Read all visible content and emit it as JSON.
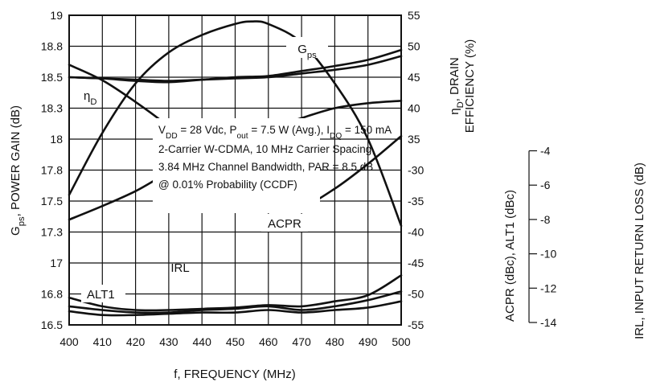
{
  "chart_data": {
    "type": "line",
    "xlabel": "f, FREQUENCY (MHz)",
    "x_ticks": [
      "400",
      "410",
      "420",
      "430",
      "440",
      "450",
      "460",
      "470",
      "480",
      "490",
      "500"
    ],
    "xlim": [
      400,
      500
    ],
    "axes": {
      "gain": {
        "label_main": "G",
        "label_sub": "ps",
        "label_rest": ", POWER GAIN (dB)",
        "ylim": [
          16.5,
          19.0
        ],
        "ticks": [
          "19",
          "18.8",
          "18.5",
          "18.3",
          "18",
          "17.8",
          "17.5",
          "17.3",
          "17",
          "16.8",
          "16.5"
        ]
      },
      "eff": {
        "label_sym": "η",
        "label_sub": "D",
        "label_line1_rest": ", DRAIN",
        "label_line2": "EFFICIENCY (%)",
        "ylim": [
          30,
          55
        ],
        "ticks": [
          "55",
          "50",
          "45",
          "40",
          "35"
        ]
      },
      "acpr": {
        "label": "ACPR (dBc), ALT1 (dBc)",
        "ylim": [
          -55,
          -30
        ],
        "ticks": [
          "-30",
          "-35",
          "-40",
          "-45",
          "-50",
          "-55"
        ]
      },
      "irl": {
        "label": "IRL, INPUT RETURN LOSS (dB)",
        "ylim": [
          -14,
          -4
        ],
        "ticks": [
          "-4",
          "-6",
          "-8",
          "-10",
          "-12",
          "-14"
        ]
      }
    },
    "series": [
      {
        "name": "Gps",
        "label_main": "G",
        "label_sub": "ps",
        "axis": "gain",
        "x": [
          400,
          410,
          420,
          430,
          440,
          450,
          455,
          460,
          470,
          480,
          490,
          500
        ],
        "y": [
          17.55,
          18.05,
          18.45,
          18.7,
          18.84,
          18.93,
          18.95,
          18.93,
          18.78,
          18.45,
          18.0,
          17.3
        ]
      },
      {
        "name": "ηD",
        "label_main": "η",
        "label_sub": "D",
        "axis": "eff",
        "x": [
          400,
          410,
          420,
          430,
          440,
          450,
          460,
          470,
          480,
          490,
          500
        ],
        "y": [
          38.5,
          39.6,
          40.8,
          42.3,
          43.4,
          44.8,
          45.8,
          46.7,
          47.5,
          47.9,
          48.1
        ]
      },
      {
        "name": "ACPR",
        "axis": "acpr",
        "shown": false,
        "x": [
          400,
          410,
          420,
          430,
          440,
          450,
          460,
          470,
          480,
          490,
          500
        ],
        "y": [
          -35.0,
          -35.1,
          -35.2,
          -35.3,
          -35.2,
          -35.1,
          -35.0,
          -34.7,
          -34.4,
          -34.0,
          -33.3
        ]
      },
      {
        "name": "ACPR_b",
        "axis": "acpr",
        "shown": false,
        "x": [
          400,
          410,
          420,
          430,
          440,
          450,
          460,
          470,
          480,
          490,
          500
        ],
        "y": [
          -35.0,
          -35.1,
          -35.3,
          -35.4,
          -35.2,
          -35.0,
          -34.9,
          -34.5,
          -34.1,
          -33.6,
          -32.8
        ]
      },
      {
        "name": "IRL",
        "axis": "irl",
        "x": [
          400,
          410,
          420,
          430,
          440,
          450,
          460,
          470,
          480,
          490,
          500
        ],
        "y": [
          -5.6,
          -6.1,
          -6.8,
          -7.6,
          -8.6,
          -9.7,
          -10.3,
          -10.2,
          -9.6,
          -8.8,
          -7.9
        ]
      },
      {
        "name": "ALT1",
        "axis": "acpr",
        "x": [
          400,
          410,
          420,
          430,
          440,
          450,
          460,
          470,
          480,
          490,
          500
        ],
        "y": [
          -52.8,
          -53.5,
          -53.8,
          -53.8,
          -53.7,
          -53.6,
          -53.4,
          -53.5,
          -53.1,
          -52.6,
          -51.0
        ]
      },
      {
        "name": "ALT1_b",
        "axis": "acpr",
        "shown": false,
        "x": [
          400,
          410,
          420,
          430,
          440,
          450,
          460,
          470,
          480,
          490,
          500
        ],
        "y": [
          -53.5,
          -53.8,
          -54.0,
          -54.0,
          -53.8,
          -53.7,
          -53.5,
          -53.8,
          -53.5,
          -53.0,
          -52.3
        ]
      },
      {
        "name": "ALT1_c",
        "axis": "acpr",
        "shown": false,
        "x": [
          400,
          410,
          420,
          430,
          440,
          450,
          460,
          470,
          480,
          490,
          500
        ],
        "y": [
          -53.9,
          -54.2,
          -54.2,
          -54.1,
          -54.0,
          -54.0,
          -53.8,
          -54.0,
          -53.8,
          -53.6,
          -53.1
        ]
      }
    ],
    "annotation": {
      "line1": [
        {
          "t": "V"
        },
        {
          "t": "DD",
          "s": 1
        },
        {
          "t": " = 28 Vdc, P"
        },
        {
          "t": "out",
          "s": 1
        },
        {
          "t": " = 7.5 W (Avg.), I"
        },
        {
          "t": "DQ",
          "s": 1
        },
        {
          "t": " = 150 mA"
        }
      ],
      "line2": "2-Carrier W-CDMA, 10 MHz Carrier Spacing,",
      "line3": "3.84 MHz Channel Bandwidth, PAR = 8.5 dB",
      "line4": "@ 0.01% Probability (CCDF)"
    },
    "grid": true
  }
}
